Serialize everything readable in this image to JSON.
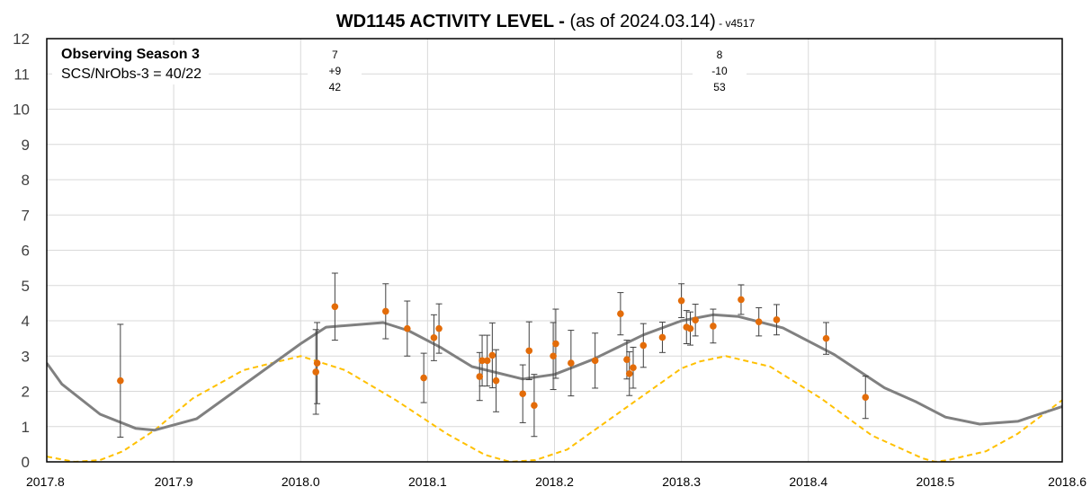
{
  "title": {
    "main": "WD1145 ACTIVITY LEVEL - ",
    "sub": "(as of 2024.03.14)",
    "version": " - v4517"
  },
  "legend_box": {
    "line1": "Observing Season 3",
    "line2": "SCS/NrObs-3 = 40/22"
  },
  "annotations": [
    {
      "x": 2018.027,
      "lines": [
        "7",
        "+9",
        "42"
      ]
    },
    {
      "x": 2018.33,
      "lines": [
        "8",
        "-10",
        "53"
      ]
    }
  ],
  "colors": {
    "points": "#e36c09",
    "trend": "#808080",
    "dashed": "#ffc000",
    "grid": "#d9d9d9",
    "axis_text": "#404040"
  },
  "chart_data": {
    "type": "scatter",
    "xlim": [
      2017.8,
      2018.6
    ],
    "ylim": [
      0,
      12
    ],
    "x_ticks": [
      "2017.8",
      "2017.9",
      "2018.0",
      "2018.1",
      "2018.2",
      "2018.3",
      "2018.4",
      "2018.5",
      "2018.6"
    ],
    "y_ticks": [
      "0",
      "1",
      "2",
      "3",
      "4",
      "5",
      "6",
      "7",
      "8",
      "9",
      "10",
      "11",
      "12"
    ],
    "grid": "both",
    "series": [
      {
        "kind": "points_with_error_bars",
        "points": [
          {
            "x": 2017.858,
            "y": 2.3,
            "err": 1.6
          },
          {
            "x": 2018.012,
            "y": 2.55,
            "err": 1.2
          },
          {
            "x": 2018.013,
            "y": 2.8,
            "err": 1.15
          },
          {
            "x": 2018.027,
            "y": 4.4,
            "err": 0.95
          },
          {
            "x": 2018.067,
            "y": 4.27,
            "err": 0.78
          },
          {
            "x": 2018.084,
            "y": 3.78,
            "err": 0.78
          },
          {
            "x": 2018.097,
            "y": 2.38,
            "err": 0.7
          },
          {
            "x": 2018.105,
            "y": 3.52,
            "err": 0.65
          },
          {
            "x": 2018.109,
            "y": 3.78,
            "err": 0.7
          },
          {
            "x": 2018.141,
            "y": 2.42,
            "err": 0.68
          },
          {
            "x": 2018.143,
            "y": 2.87,
            "err": 0.72
          },
          {
            "x": 2018.147,
            "y": 2.87,
            "err": 0.72
          },
          {
            "x": 2018.151,
            "y": 3.02,
            "err": 0.92
          },
          {
            "x": 2018.154,
            "y": 2.3,
            "err": 0.88
          },
          {
            "x": 2018.175,
            "y": 1.93,
            "err": 0.82
          },
          {
            "x": 2018.18,
            "y": 3.15,
            "err": 0.82
          },
          {
            "x": 2018.184,
            "y": 1.6,
            "err": 0.88
          },
          {
            "x": 2018.199,
            "y": 3.0,
            "err": 0.95
          },
          {
            "x": 2018.201,
            "y": 3.35,
            "err": 0.98
          },
          {
            "x": 2018.213,
            "y": 2.8,
            "err": 0.93
          },
          {
            "x": 2018.232,
            "y": 2.87,
            "err": 0.78
          },
          {
            "x": 2018.252,
            "y": 4.2,
            "err": 0.6
          },
          {
            "x": 2018.257,
            "y": 2.9,
            "err": 0.55
          },
          {
            "x": 2018.259,
            "y": 2.5,
            "err": 0.62
          },
          {
            "x": 2018.262,
            "y": 2.67,
            "err": 0.58
          },
          {
            "x": 2018.27,
            "y": 3.3,
            "err": 0.62
          },
          {
            "x": 2018.285,
            "y": 3.53,
            "err": 0.43
          },
          {
            "x": 2018.3,
            "y": 4.57,
            "err": 0.48
          },
          {
            "x": 2018.304,
            "y": 3.82,
            "err": 0.47
          },
          {
            "x": 2018.307,
            "y": 3.78,
            "err": 0.47
          },
          {
            "x": 2018.311,
            "y": 4.02,
            "err": 0.45
          },
          {
            "x": 2018.325,
            "y": 3.85,
            "err": 0.48
          },
          {
            "x": 2018.347,
            "y": 4.6,
            "err": 0.42
          },
          {
            "x": 2018.361,
            "y": 3.97,
            "err": 0.4
          },
          {
            "x": 2018.375,
            "y": 4.03,
            "err": 0.43
          },
          {
            "x": 2018.414,
            "y": 3.5,
            "err": 0.45
          },
          {
            "x": 2018.445,
            "y": 1.83,
            "err": 0.6
          }
        ]
      },
      {
        "kind": "trend_line",
        "x": [
          2017.8,
          2017.812,
          2017.842,
          2017.87,
          2017.885,
          2017.918,
          2018.0,
          2018.02,
          2018.065,
          2018.085,
          2018.11,
          2018.135,
          2018.175,
          2018.2,
          2018.23,
          2018.27,
          2018.3,
          2018.325,
          2018.345,
          2018.38,
          2018.42,
          2018.46,
          2018.485,
          2018.508,
          2018.535,
          2018.565,
          2018.6
        ],
        "y": [
          2.8,
          2.2,
          1.35,
          0.95,
          0.9,
          1.22,
          3.35,
          3.82,
          3.95,
          3.72,
          3.25,
          2.7,
          2.35,
          2.48,
          2.9,
          3.6,
          4.0,
          4.17,
          4.12,
          3.8,
          3.05,
          2.1,
          1.7,
          1.27,
          1.07,
          1.15,
          1.57
        ]
      },
      {
        "kind": "dashed_line",
        "x": [
          2017.8,
          2017.822,
          2017.842,
          2017.86,
          2017.885,
          2017.915,
          2017.955,
          2018.0,
          2018.035,
          2018.075,
          2018.115,
          2018.145,
          2018.165,
          2018.185,
          2018.21,
          2018.255,
          2018.3,
          2018.315,
          2018.335,
          2018.37,
          2018.41,
          2018.45,
          2018.49,
          2018.5,
          2018.51,
          2018.54,
          2018.565,
          2018.6
        ],
        "y": [
          0.15,
          0.0,
          0.05,
          0.3,
          0.9,
          1.8,
          2.6,
          3.0,
          2.6,
          1.75,
          0.8,
          0.2,
          0.0,
          0.05,
          0.35,
          1.5,
          2.65,
          2.85,
          3.0,
          2.7,
          1.8,
          0.75,
          0.1,
          0.0,
          0.05,
          0.3,
          0.8,
          1.75
        ]
      }
    ]
  }
}
